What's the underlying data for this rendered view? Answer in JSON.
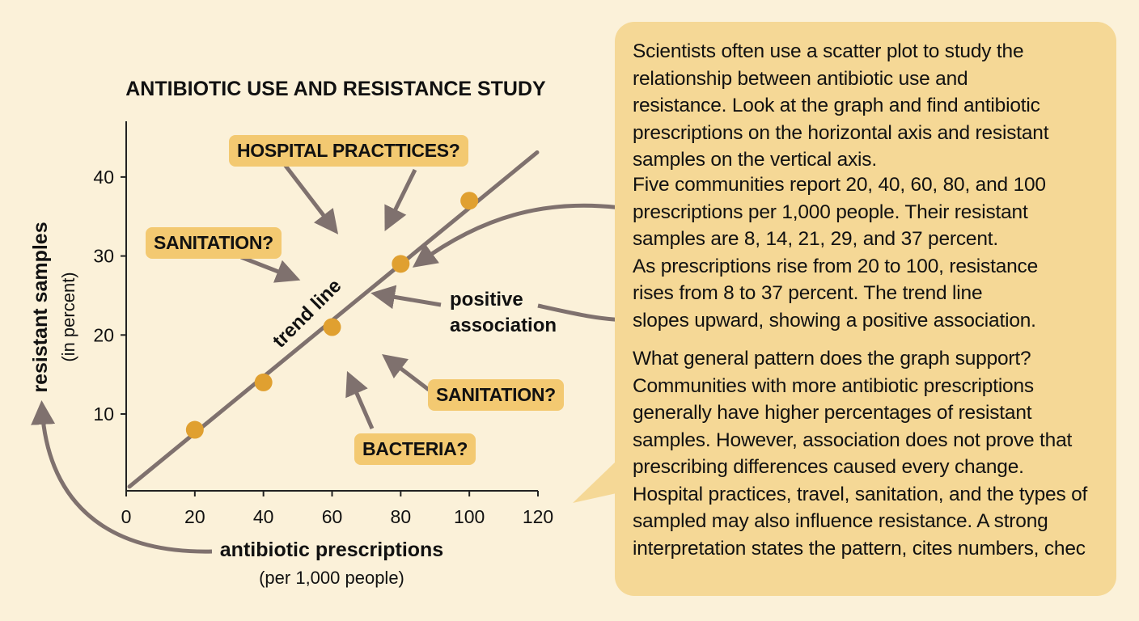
{
  "chart_data": {
    "type": "scatter",
    "title": "ANTIBIOTIC USE AND RESISTANCE STUDY",
    "xlabel": "antibiotic prescriptions",
    "xlabel_sub": "(per 1,000 people)",
    "ylabel": "resistant samples",
    "ylabel_sub": "(in percent)",
    "x": [
      20,
      40,
      60,
      80,
      100
    ],
    "y": [
      8,
      14,
      21,
      29,
      37
    ],
    "xlim": [
      0,
      120
    ],
    "ylim": [
      0,
      45
    ],
    "xticks": [
      "0",
      "20",
      "40",
      "60",
      "80",
      "100",
      "120"
    ],
    "yticks": [
      "10",
      "20",
      "30",
      "40"
    ],
    "ytick_values": [
      10,
      20,
      30,
      40
    ],
    "xtick_values": [
      0,
      20,
      40,
      60,
      80,
      100,
      120
    ],
    "trend_line": {
      "label": "trend line",
      "x": [
        0,
        120
      ],
      "y": [
        0.5,
        42.5
      ]
    },
    "point_color": "#e0a030",
    "line_color": "#7f716e",
    "grid": false
  },
  "annotations": {
    "hospital": "HOSPITAL PRACTTICES?",
    "sanitation_left": "SANITATION?",
    "sanitation_right": "SANITATION?",
    "bacteria": "BACTERIA?",
    "positive_association": [
      "positive",
      "association"
    ]
  },
  "panel": {
    "paragraph1": [
      "Scientists often use a scatter plot to study the",
      "relationship between antibiotic use and",
      "resistance. Look at the graph and find antibiotic",
      "prescriptions on the horizontal axis and resistant",
      "samples on the vertical axis."
    ],
    "paragraph2": [
      "Five communities report 20, 40, 60, 80, and 100",
      "prescriptions per 1,000 people. Their resistant",
      "samples are 8, 14, 21, 29, and 37 percent.",
      "As prescriptions rise from 20 to 100, resistance",
      "rises from 8 to 37 percent. The trend line",
      "slopes upward, showing a positive association."
    ],
    "paragraph3": [
      "What general pattern does the graph support?",
      "Communities with more antibiotic prescriptions",
      "generally have higher percentages of resistant",
      "samples. However, association does not prove that",
      "prescribing differences caused every change.",
      "Hospital practices, travel, sanitation, and the types of",
      "sampled may also influence resistance. A strong",
      "interpretation states the pattern, cites numbers, chec"
    ]
  },
  "colors": {
    "background": "#fbf1d9",
    "panel": "#f5d896",
    "label_box": "#f3c971",
    "arrow": "#7f716e"
  }
}
